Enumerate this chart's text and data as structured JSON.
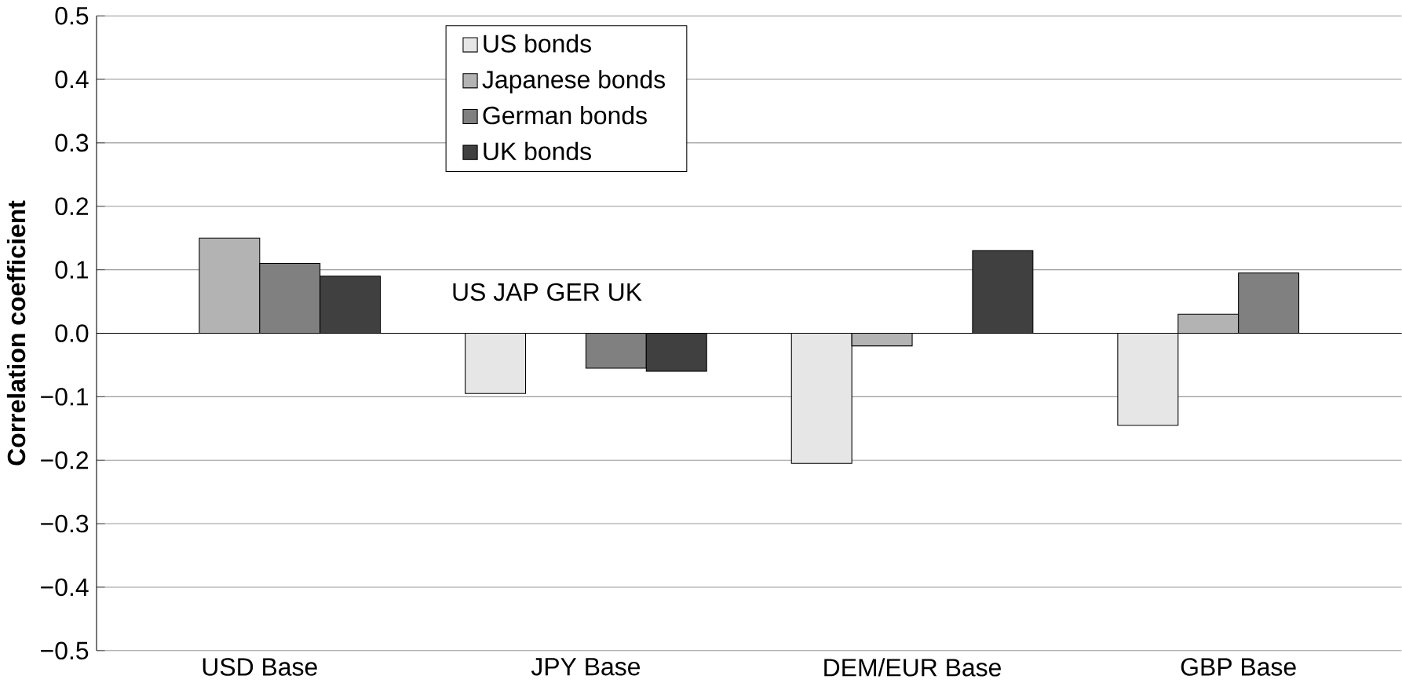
{
  "chart_data": {
    "type": "bar",
    "ylabel": "Correlation coefficient",
    "categories": [
      "USD Base",
      "JPY Base",
      "DEM/EUR Base",
      "GBP Base"
    ],
    "series": [
      {
        "name": "US bonds",
        "color": "#e6e6e6",
        "values": [
          null,
          -0.095,
          -0.205,
          -0.145
        ]
      },
      {
        "name": "Japanese bonds",
        "color": "#b3b3b3",
        "values": [
          0.15,
          null,
          -0.02,
          0.03
        ]
      },
      {
        "name": "German bonds",
        "color": "#808080",
        "values": [
          0.11,
          -0.055,
          null,
          0.095
        ]
      },
      {
        "name": "UK bonds",
        "color": "#404040",
        "values": [
          0.09,
          -0.06,
          0.13,
          null
        ]
      }
    ],
    "ylim": [
      -0.5,
      0.5
    ],
    "yticks": [
      {
        "value": -0.5,
        "label": "−0.5"
      },
      {
        "value": -0.4,
        "label": "−0.4"
      },
      {
        "value": -0.3,
        "label": "−0.3"
      },
      {
        "value": -0.2,
        "label": "−0.2"
      },
      {
        "value": -0.1,
        "label": "−0.1"
      },
      {
        "value": 0,
        "label": "0.0"
      },
      {
        "value": 0.1,
        "label": "0.1"
      },
      {
        "value": 0.2,
        "label": "0.2"
      },
      {
        "value": 0.3,
        "label": "0.3"
      },
      {
        "value": 0.4,
        "label": "0.4"
      },
      {
        "value": 0.5,
        "label": "0.5"
      }
    ],
    "grid": "y",
    "legend": "top",
    "annotations": [
      "US JAP GER UK"
    ]
  }
}
